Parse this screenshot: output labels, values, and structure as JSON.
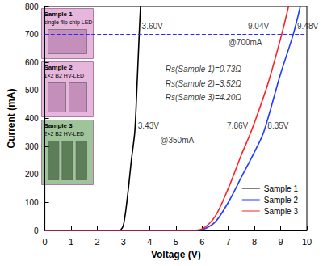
{
  "chart_data": {
    "type": "line",
    "x_label": "Voltage (V)",
    "y_label": "Current (mA)",
    "xlim": [
      0,
      10
    ],
    "xticks": [
      0,
      1,
      2,
      3,
      4,
      5,
      6,
      7,
      8,
      9,
      10
    ],
    "ylim": [
      0,
      800
    ],
    "yticks": [
      0,
      100,
      200,
      300,
      400,
      500,
      600,
      700,
      800
    ],
    "grid": false,
    "legend": "lower right",
    "series": [
      {
        "name": "Sample 1",
        "color": "#000000",
        "x": [
          0,
          1,
          2,
          2.8,
          2.9,
          3.0,
          3.1,
          3.2,
          3.3,
          3.43,
          3.5,
          3.6,
          3.65
        ],
        "values": [
          0,
          0,
          0,
          0,
          2,
          20,
          80,
          160,
          250,
          350,
          480,
          700,
          800
        ]
      },
      {
        "name": "Sample 2",
        "color": "#1f3bff",
        "x": [
          0,
          1,
          2,
          3,
          4,
          5,
          5.8,
          6.0,
          6.5,
          7.0,
          7.5,
          8.0,
          8.35,
          9.0,
          9.48,
          9.75
        ],
        "values": [
          0,
          0,
          0,
          0,
          0,
          0,
          0,
          2,
          30,
          100,
          190,
          280,
          350,
          560,
          700,
          800
        ]
      },
      {
        "name": "Sample 3",
        "color": "#ff2020",
        "x": [
          0,
          1,
          2,
          3,
          4,
          5,
          5.6,
          6.0,
          6.5,
          7.0,
          7.5,
          7.86,
          8.5,
          9.04,
          9.3
        ],
        "values": [
          0,
          0,
          0,
          0,
          0,
          0,
          0,
          5,
          50,
          150,
          270,
          350,
          520,
          700,
          800
        ]
      }
    ],
    "reference_lines": [
      {
        "value": 700,
        "color": "#2a2aff",
        "line_style": "dashed"
      },
      {
        "value": 350,
        "color": "#2a2aff",
        "line_style": "dashed"
      }
    ],
    "annotations": [
      {
        "text": "3.60V",
        "x": 3.7,
        "y": 728
      },
      {
        "text": "9.04V",
        "x": 7.75,
        "y": 728
      },
      {
        "text": "9.48V",
        "x": 9.63,
        "y": 728
      },
      {
        "text": "@700mA",
        "x": 7.0,
        "y": 672
      },
      {
        "text": "3.43V",
        "x": 3.55,
        "y": 375
      },
      {
        "text": "7.86V",
        "x": 6.95,
        "y": 375
      },
      {
        "text": "8.35V",
        "x": 8.5,
        "y": 375
      },
      {
        "text": "@350mA",
        "x": 4.4,
        "y": 322
      },
      {
        "text": "Rs(Sample 1)=0.73Ω",
        "x": 4.6,
        "y": 575,
        "italic": true
      },
      {
        "text": "Rs(Sample 2)=3.52Ω",
        "x": 4.6,
        "y": 525,
        "italic": true
      },
      {
        "text": "Rs(Sample 3)=4.20Ω",
        "x": 4.6,
        "y": 475,
        "italic": true
      }
    ],
    "insets": [
      {
        "title": "Sample 1",
        "subtitle": "single flip-chip LED"
      },
      {
        "title": "Sample 2",
        "subtitle": "1×2 B2 HV-LED"
      },
      {
        "title": "Sample 3",
        "subtitle": "2×2 B2 HV-LED"
      }
    ]
  }
}
